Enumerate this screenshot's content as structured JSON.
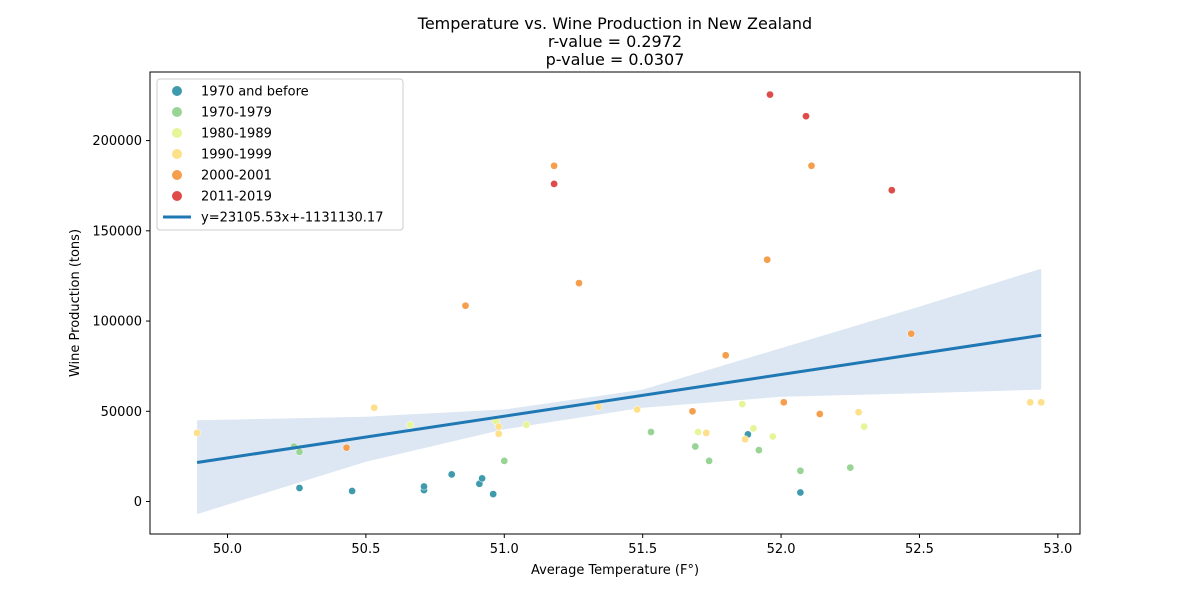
{
  "chart_data": {
    "type": "scatter",
    "title": "Temperature vs. Wine Production in New Zealand",
    "subtitle_lines": [
      "r-value = 0.2972",
      "p-value = 0.0307"
    ],
    "xlabel": "Average Temperature (F°)",
    "ylabel": "Wine Production (tons)",
    "xlim": [
      49.72,
      53.08
    ],
    "ylim": [
      -18000,
      238000
    ],
    "x_ticks": [
      {
        "value": 50.0,
        "label": "50.0"
      },
      {
        "value": 50.5,
        "label": "50.5"
      },
      {
        "value": 51.0,
        "label": "51.0"
      },
      {
        "value": 51.5,
        "label": "51.5"
      },
      {
        "value": 52.0,
        "label": "52.0"
      },
      {
        "value": 52.5,
        "label": "52.5"
      },
      {
        "value": 53.0,
        "label": "53.0"
      }
    ],
    "y_ticks": [
      {
        "value": 0,
        "label": "0"
      },
      {
        "value": 50000,
        "label": "50000"
      },
      {
        "value": 100000,
        "label": "100000"
      },
      {
        "value": 150000,
        "label": "150000"
      },
      {
        "value": 200000,
        "label": "200000"
      }
    ],
    "grid": false,
    "legend_position": "top-left",
    "series": [
      {
        "name": "1970 and before",
        "color": "#3f9aae",
        "points": [
          [
            50.26,
            7500
          ],
          [
            50.45,
            5800
          ],
          [
            50.71,
            6300
          ],
          [
            50.71,
            8300
          ],
          [
            50.81,
            15000
          ],
          [
            50.91,
            9800
          ],
          [
            50.92,
            12800
          ],
          [
            50.96,
            4100
          ],
          [
            51.88,
            37200
          ],
          [
            52.07,
            5000
          ]
        ]
      },
      {
        "name": "1970-1979",
        "color": "#98d594",
        "points": [
          [
            50.24,
            30500
          ],
          [
            50.26,
            27500
          ],
          [
            51.0,
            22500
          ],
          [
            51.53,
            38500
          ],
          [
            51.69,
            30500
          ],
          [
            51.74,
            22500
          ],
          [
            51.92,
            28500
          ],
          [
            52.07,
            17000
          ],
          [
            52.25,
            18800
          ]
        ]
      },
      {
        "name": "1980-1989",
        "color": "#e6f598",
        "points": [
          [
            50.66,
            42500
          ],
          [
            50.97,
            44500
          ],
          [
            51.08,
            42500
          ],
          [
            51.7,
            38500
          ],
          [
            51.86,
            54000
          ],
          [
            51.9,
            40500
          ],
          [
            51.97,
            36000
          ],
          [
            52.3,
            41500
          ]
        ]
      },
      {
        "name": "1990-1999",
        "color": "#fee08b",
        "points": [
          [
            49.89,
            38000
          ],
          [
            50.53,
            52000
          ],
          [
            50.98,
            41500
          ],
          [
            50.98,
            37500
          ],
          [
            51.34,
            52500
          ],
          [
            51.48,
            51000
          ],
          [
            51.73,
            38000
          ],
          [
            51.87,
            34500
          ],
          [
            52.28,
            49500
          ],
          [
            52.9,
            55000
          ],
          [
            52.94,
            55000
          ]
        ]
      },
      {
        "name": "2000-2001",
        "color": "#f59e4c",
        "points": [
          [
            50.43,
            29800
          ],
          [
            50.86,
            108500
          ],
          [
            51.18,
            186000
          ],
          [
            51.27,
            121000
          ],
          [
            51.68,
            50000
          ],
          [
            51.8,
            81000
          ],
          [
            51.95,
            134000
          ],
          [
            52.01,
            55000
          ],
          [
            52.11,
            186000
          ],
          [
            52.14,
            48500
          ],
          [
            52.47,
            93000
          ]
        ]
      },
      {
        "name": "2011-2019",
        "color": "#de4b48",
        "points": [
          [
            51.18,
            176000
          ],
          [
            51.96,
            225500
          ],
          [
            52.09,
            213500
          ],
          [
            52.4,
            172500
          ]
        ]
      }
    ],
    "regression": {
      "label": "y=23105.53x+-1131130.17",
      "color": "#1f77b4",
      "slope": 23105.53,
      "intercept": -1131130.17,
      "x_range": [
        49.89,
        52.94
      ],
      "band_color": "#b9d0e8",
      "band_upper": [
        [
          49.89,
          45000
        ],
        [
          50.5,
          47000
        ],
        [
          51.0,
          51000
        ],
        [
          51.5,
          62000
        ],
        [
          52.0,
          85000
        ],
        [
          52.5,
          108000
        ],
        [
          52.94,
          129000
        ]
      ],
      "band_lower": [
        [
          49.89,
          -7000
        ],
        [
          50.5,
          22000
        ],
        [
          51.0,
          40000
        ],
        [
          51.5,
          52000
        ],
        [
          52.0,
          58000
        ],
        [
          52.5,
          60000
        ],
        [
          52.94,
          62000
        ]
      ]
    }
  }
}
